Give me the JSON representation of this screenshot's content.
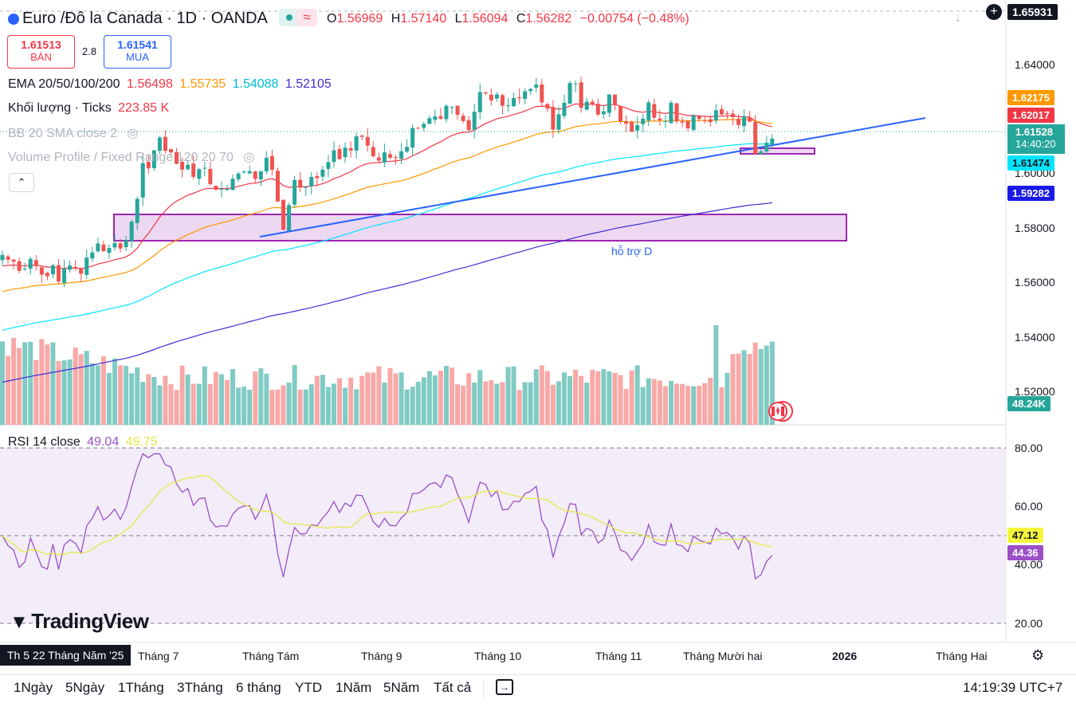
{
  "header": {
    "title": "Euro /Đô la Canada · 1D · OANDA",
    "ohlc": {
      "o_label": "O",
      "o": "1.56969",
      "h_label": "H",
      "h": "1.57140",
      "l_label": "L",
      "l": "1.56094",
      "c_label": "C",
      "c": "1.56282",
      "change": "−0.00754 (−0.48%)"
    }
  },
  "trade": {
    "sell_price": "1.61513",
    "sell_label": "BÁN",
    "spread": "2.8",
    "buy_price": "1.61541",
    "buy_label": "MUA"
  },
  "indicators": {
    "ema_label": "EMA 20/50/100/200",
    "ema_values": [
      "1.56498",
      "1.55735",
      "1.54088",
      "1.52105"
    ],
    "volume_label": "Khối lượng · Ticks",
    "volume_value": "223.85 K",
    "bb_label": "BB 20 SMA close 2",
    "vp_label": "Volume Profile / Fixed Range 120 20 70",
    "rsi_label": "RSI 14 close",
    "rsi_values": [
      "49.04",
      "49.75"
    ]
  },
  "price_axis": {
    "ticks": [
      "1.64000",
      "1.62000",
      "1.60000",
      "1.58000",
      "1.56000",
      "1.54000",
      "1.52000"
    ],
    "top_tag": "1.65931",
    "tags": [
      "1.62175",
      "1.62017",
      "1.61528",
      "14:40:20",
      "1.61474",
      "1.59282"
    ],
    "volume_tag": "48.24K"
  },
  "rsi_axis": {
    "ticks": [
      "80.00",
      "60.00",
      "40.00",
      "20.00"
    ],
    "tags": [
      "47.12",
      "44.36"
    ]
  },
  "time_axis": {
    "cursor_label": "Th 5 22 Tháng Năm '25",
    "labels": [
      "Tháng 7",
      "Tháng Tám",
      "Tháng 9",
      "Tháng 10",
      "Tháng 11",
      "Tháng Mười hai",
      "2026",
      "Tháng Hai"
    ]
  },
  "annotation": {
    "support_label": "hỗ trợ D"
  },
  "logo": "TradingView",
  "bottom": {
    "ranges": [
      "1Ngày",
      "5Ngày",
      "1Tháng",
      "3Tháng",
      "6 tháng",
      "YTD",
      "1Năm",
      "5Năm",
      "Tất cả"
    ],
    "clock": "14:19:39 UTC+7"
  },
  "colors": {
    "up": "#26a69a",
    "down": "#ef5350",
    "ema20": "#f23645",
    "ema50": "#ff9800",
    "ema100": "#00e5ff",
    "ema200": "#3f2fd4",
    "trend": "#2962ff",
    "rsi": "#9c4fc7",
    "rsi_ma": "#e6e84a"
  },
  "chart_data": {
    "type": "candlestick",
    "symbol": "EURCAD",
    "timeframe": "1D",
    "price_range": [
      1.505,
      1.665
    ],
    "rsi_range": [
      15,
      85
    ],
    "closes": [
      1.5707,
      1.5689,
      1.5681,
      1.5646,
      1.5654,
      1.5692,
      1.5664,
      1.5631,
      1.5625,
      1.5667,
      1.5604,
      1.5654,
      1.5666,
      1.5658,
      1.5634,
      1.5697,
      1.5717,
      1.5751,
      1.5722,
      1.5734,
      1.5753,
      1.5732,
      1.5764,
      1.5836,
      1.5924,
      1.6062,
      1.6042,
      1.6112,
      1.6161,
      1.611,
      1.6104,
      1.606,
      1.6037,
      1.6056,
      1.6009,
      1.6039,
      1.6044,
      1.5981,
      1.5959,
      1.5963,
      1.5962,
      1.6002,
      1.6022,
      1.603,
      1.6031,
      1.6001,
      1.6031,
      1.6083,
      1.6036,
      1.5914,
      1.5805,
      1.59,
      1.5997,
      1.5968,
      1.597,
      1.6009,
      1.6004,
      1.6037,
      1.6066,
      1.6112,
      1.6078,
      1.6122,
      1.6111,
      1.6166,
      1.6164,
      1.613,
      1.6089,
      1.6072,
      1.6104,
      1.6083,
      1.6082,
      1.6108,
      1.6125,
      1.6198,
      1.6199,
      1.6214,
      1.6236,
      1.6243,
      1.6234,
      1.6284,
      1.6279,
      1.6249,
      1.6225,
      1.619,
      1.6261,
      1.6337,
      1.6332,
      1.6305,
      1.6328,
      1.6284,
      1.6286,
      1.6314,
      1.6313,
      1.634,
      1.6349,
      1.6366,
      1.6297,
      1.6273,
      1.6192,
      1.6251,
      1.6296,
      1.6372,
      1.637,
      1.6276,
      1.63,
      1.6291,
      1.625,
      1.6263,
      1.6328,
      1.6288,
      1.6224,
      1.6215,
      1.6183,
      1.6209,
      1.6234,
      1.6297,
      1.6238,
      1.6228,
      1.6225,
      1.6296,
      1.6224,
      1.6219,
      1.6197,
      1.6247,
      1.6233,
      1.6227,
      1.6221,
      1.6267,
      1.6251,
      1.6255,
      1.624,
      1.621,
      1.6243,
      1.6223,
      1.6098,
      1.6108,
      1.6141,
      1.6157
    ]
  }
}
